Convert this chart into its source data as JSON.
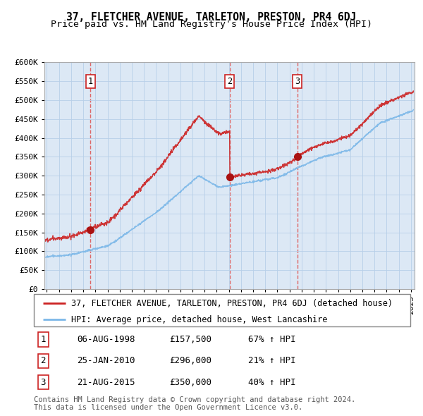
{
  "title": "37, FLETCHER AVENUE, TARLETON, PRESTON, PR4 6DJ",
  "subtitle": "Price paid vs. HM Land Registry's House Price Index (HPI)",
  "ylim": [
    0,
    600000
  ],
  "yticks": [
    0,
    50000,
    100000,
    150000,
    200000,
    250000,
    300000,
    350000,
    400000,
    450000,
    500000,
    550000,
    600000
  ],
  "xlim_start": 1994.8,
  "xlim_end": 2025.3,
  "sale_dates": [
    1998.59,
    2010.07,
    2015.64
  ],
  "sale_prices": [
    157500,
    296000,
    350000
  ],
  "sale_labels": [
    "1",
    "2",
    "3"
  ],
  "sale_date_strs": [
    "06-AUG-1998",
    "25-JAN-2010",
    "21-AUG-2015"
  ],
  "sale_price_strs": [
    "£157,500",
    "£296,000",
    "£350,000"
  ],
  "sale_pct_strs": [
    "67% ↑ HPI",
    "21% ↑ HPI",
    "40% ↑ HPI"
  ],
  "hpi_color": "#7cb8e8",
  "price_color": "#cc2222",
  "sale_marker_color": "#aa1111",
  "dashed_line_color": "#dd6666",
  "background_color": "#dce8f5",
  "grid_color": "#b8cfe8",
  "legend_label_price": "37, FLETCHER AVENUE, TARLETON, PRESTON, PR4 6DJ (detached house)",
  "legend_label_hpi": "HPI: Average price, detached house, West Lancashire",
  "footnote": "Contains HM Land Registry data © Crown copyright and database right 2024.\nThis data is licensed under the Open Government Licence v3.0.",
  "title_fontsize": 10.5,
  "subtitle_fontsize": 9.5,
  "tick_fontsize": 8,
  "legend_fontsize": 8.5,
  "table_fontsize": 9,
  "footnote_fontsize": 7.5
}
